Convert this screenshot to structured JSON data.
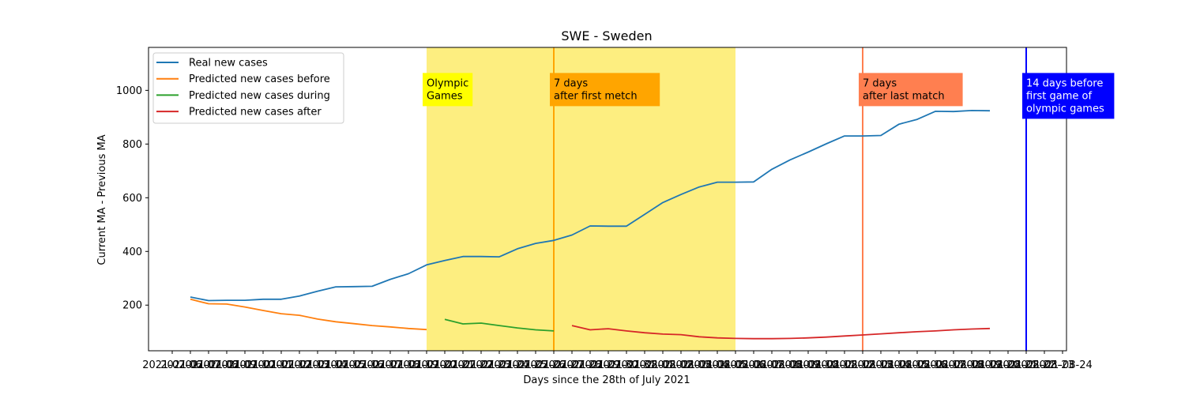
{
  "chart_data": {
    "type": "line",
    "title": "SWE - Sweden",
    "xlabel": "Days since the 28th of July 2021",
    "ylabel": "Current MA - Previous MA",
    "ylim": [
      30,
      1160
    ],
    "yticks": [
      200,
      400,
      600,
      800,
      1000
    ],
    "x_dates": [
      "2021-07-06",
      "2021-07-07",
      "2021-07-08",
      "2021-07-09",
      "2021-07-10",
      "2021-07-11",
      "2021-07-12",
      "2021-07-13",
      "2021-07-14",
      "2021-07-15",
      "2021-07-16",
      "2021-07-17",
      "2021-07-18",
      "2021-07-19",
      "2021-07-20",
      "2021-07-21",
      "2021-07-22",
      "2021-07-23",
      "2021-07-24",
      "2021-07-25",
      "2021-07-26",
      "2021-07-27",
      "2021-07-28",
      "2021-07-29",
      "2021-07-30",
      "2021-07-31",
      "2021-08-01",
      "2021-08-02",
      "2021-08-03",
      "2021-08-04",
      "2021-08-05",
      "2021-08-06",
      "2021-08-07",
      "2021-08-08",
      "2021-08-09",
      "2021-08-10",
      "2021-08-11",
      "2021-08-12",
      "2021-08-13",
      "2021-08-14",
      "2021-08-15",
      "2021-08-16",
      "2021-08-17",
      "2021-08-18",
      "2021-08-19",
      "2021-08-20",
      "2021-08-21",
      "2021-08-22",
      "2021-08-23",
      "2021-08-24",
      "2021-08-25",
      "2021-08-26",
      "2021-08-27",
      "2021-08-28",
      "2021-08-29",
      "2021-08-30",
      "2021-08-31",
      "2021-09-01",
      "2021-09-02",
      "2021-09-03",
      "2021-09-04",
      "2021-09-05",
      "2021-09-06",
      "2021-09-07",
      "2021-09-08",
      "2021-09-09",
      "2021-09-10",
      "2021-09-11",
      "2021-09-12",
      "2021-09-13",
      "2021-09-14",
      "2021-09-15",
      "2021-09-16",
      "2021-09-17",
      "2021-09-18",
      "2021-09-19",
      "2021-09-20",
      "2021-09-21",
      "2021-09-22",
      "2021-09-23",
      "2021-09-24",
      "2021-09-25",
      "2021-09-26",
      "2021-09-27",
      "2021-09-28",
      "2021-09-29",
      "2021-09-30",
      "2021-10-01",
      "2021-10-02",
      "2021-10-03",
      "2021-10-04",
      "2021-10-05",
      "2021-10-06",
      "2021-10-07",
      "2021-10-08"
    ],
    "series": [
      {
        "name": "Real new cases",
        "color": "#1f77b4",
        "x": [
          "2021-07-07",
          "2021-07-08",
          "2021-07-09",
          "2021-07-10",
          "2021-07-11",
          "2021-07-12",
          "2021-07-13",
          "2021-07-14",
          "2021-07-15",
          "2021-07-16",
          "2021-07-17",
          "2021-07-18",
          "2021-07-19",
          "2021-07-20",
          "2021-07-21",
          "2021-07-22",
          "2021-07-23",
          "2021-07-24",
          "2021-07-25",
          "2021-07-26",
          "2021-07-27",
          "2021-07-28",
          "2021-07-29",
          "2021-07-30",
          "2021-07-31",
          "2021-08-01",
          "2021-08-02",
          "2021-08-03",
          "2021-08-04",
          "2021-08-05",
          "2021-08-06",
          "2021-08-07",
          "2021-08-08",
          "2021-08-09",
          "2021-08-10",
          "2021-08-11",
          "2021-08-12",
          "2021-08-13",
          "2021-08-14",
          "2021-08-15",
          "2021-08-16",
          "2021-08-17",
          "2021-08-18",
          "2021-08-19",
          "2021-08-20"
        ],
        "y": [
          230,
          217,
          218,
          218,
          222,
          222,
          234,
          252,
          268,
          269,
          270,
          296,
          317,
          350,
          366,
          381,
          381,
          380,
          410,
          430,
          441,
          461,
          495,
          494,
          494,
          538,
          582,
          612,
          640,
          658,
          658,
          659,
          706,
          741,
          770,
          801,
          830,
          830,
          832,
          874,
          892,
          922,
          921,
          925,
          924
        ]
      },
      {
        "name": "Predicted new cases before",
        "color": "#ff7f0e",
        "x": [
          "2021-07-07",
          "2021-07-08",
          "2021-07-09",
          "2021-07-10",
          "2021-07-11",
          "2021-07-12",
          "2021-07-13",
          "2021-07-14",
          "2021-07-15",
          "2021-07-16",
          "2021-07-17",
          "2021-07-18",
          "2021-07-19",
          "2021-07-20"
        ],
        "y": [
          222,
          205,
          204,
          193,
          180,
          168,
          162,
          148,
          138,
          131,
          124,
          119,
          113,
          109
        ]
      },
      {
        "name": "Predicted new cases during",
        "color": "#2ca02c",
        "x": [
          "2021-07-21",
          "2021-07-22",
          "2021-07-23",
          "2021-07-24",
          "2021-07-25",
          "2021-07-26",
          "2021-07-27"
        ],
        "y": [
          147,
          130,
          133,
          124,
          115,
          108,
          104
        ]
      },
      {
        "name": "Predicted new cases after",
        "color": "#d62728",
        "x": [
          "2021-07-28",
          "2021-07-29",
          "2021-07-30",
          "2021-07-31",
          "2021-08-01",
          "2021-08-02",
          "2021-08-03",
          "2021-08-04",
          "2021-08-05",
          "2021-08-06",
          "2021-08-07",
          "2021-08-08",
          "2021-08-09",
          "2021-08-10",
          "2021-08-11",
          "2021-08-12",
          "2021-08-13",
          "2021-08-14",
          "2021-08-15",
          "2021-08-16",
          "2021-08-17",
          "2021-08-18",
          "2021-08-19",
          "2021-08-20"
        ],
        "y": [
          124,
          108,
          112,
          104,
          97,
          92,
          90,
          82,
          78,
          76,
          75,
          75,
          76,
          78,
          81,
          85,
          89,
          93,
          97,
          101,
          104,
          108,
          111,
          113
        ]
      }
    ],
    "shaded_region": {
      "x_start": "2021-07-20",
      "x_end": "2021-08-06",
      "color": "#fdee80"
    },
    "vlines": [
      {
        "x": "2021-07-27",
        "color": "#ffa500"
      },
      {
        "x": "2021-08-13",
        "color": "#ff7f50"
      },
      {
        "x": "2021-08-22",
        "color": "#0000ff"
      }
    ],
    "annotations": [
      {
        "lines": [
          "Olympic",
          "Games"
        ],
        "x": "2021-07-20",
        "y": 1000,
        "bg": "#ffff00",
        "fg": "#000000"
      },
      {
        "lines": [
          "7 days",
          "after first metch"
        ],
        "x": "2021-07-27",
        "y": 1000,
        "bg": "#ffa500",
        "fg": "#000000"
      },
      {
        "lines": [
          "7 days",
          "after last match"
        ],
        "x": "2021-08-13",
        "y": 1000,
        "bg": "#ff7f50",
        "fg": "#000000"
      },
      {
        "lines": [
          "14 days before",
          "first game of",
          "olympic games"
        ],
        "x": "2021-08-22",
        "y": 1000,
        "bg": "#0000ff",
        "fg": "#ffffff"
      }
    ],
    "legend_position": "top-left",
    "grid": false
  }
}
